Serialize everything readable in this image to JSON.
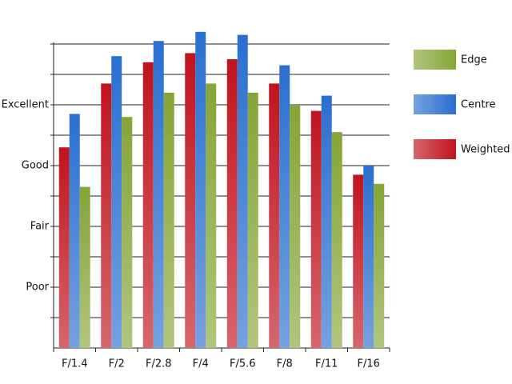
{
  "chart_data": {
    "type": "bar",
    "categories": [
      "F/1.4",
      "F/2",
      "F/2.8",
      "F/4",
      "F/5.6",
      "F/8",
      "F/11",
      "F/16"
    ],
    "series": [
      {
        "name": "Weighted",
        "color": "#c0141e",
        "values": [
          6.6,
          8.7,
          9.4,
          9.7,
          9.5,
          8.7,
          7.8,
          5.7
        ]
      },
      {
        "name": "Centre",
        "color": "#2a6fd0",
        "values": [
          7.7,
          9.6,
          10.1,
          10.4,
          10.3,
          9.3,
          8.3,
          6.0
        ]
      },
      {
        "name": "Edge",
        "color": "#85a536",
        "values": [
          5.3,
          7.6,
          8.4,
          8.7,
          8.4,
          8.0,
          7.1,
          5.4
        ]
      }
    ],
    "ylim": [
      0,
      10
    ],
    "yticks": [
      {
        "value": 2,
        "label": "Poor"
      },
      {
        "value": 4,
        "label": "Fair"
      },
      {
        "value": 6,
        "label": "Good"
      },
      {
        "value": 8,
        "label": "Excellent"
      }
    ],
    "grid_step": 1,
    "grid": true,
    "legend": "right"
  }
}
